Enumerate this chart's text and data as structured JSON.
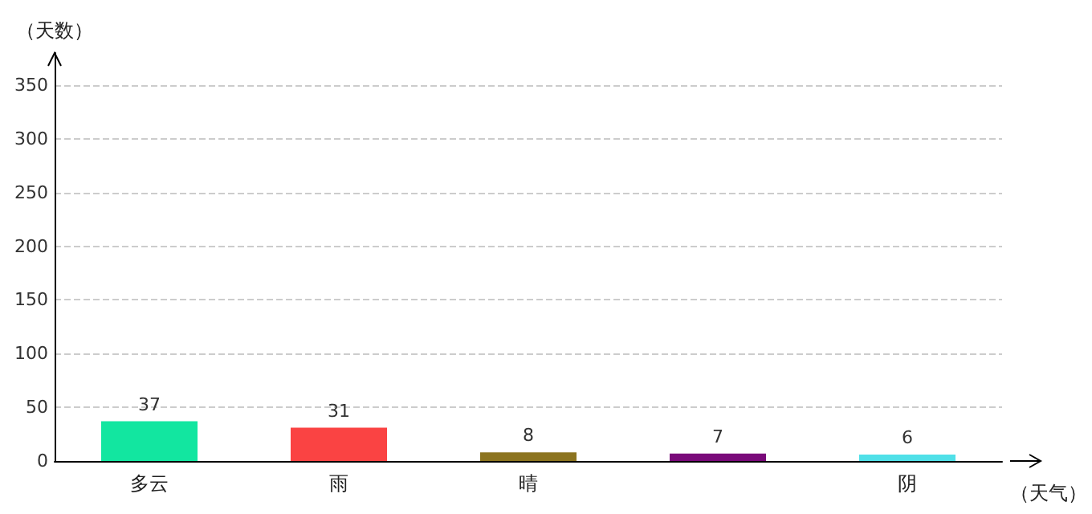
{
  "chart_data": {
    "type": "bar",
    "xlabel": "（天气）",
    "ylabel": "（天数）",
    "categories": [
      "多云",
      "雨",
      "晴",
      null,
      "阴"
    ],
    "values": [
      37,
      31,
      8,
      7,
      6
    ],
    "colors": [
      "#12e6a0",
      "#fa4343",
      "#8c7420",
      "#7a0a7a",
      "#50e0e8"
    ],
    "ylim": [
      0,
      380
    ],
    "yticks": [
      0,
      50,
      100,
      150,
      200,
      250,
      300,
      350
    ],
    "grid": "y",
    "data_labels": true
  }
}
